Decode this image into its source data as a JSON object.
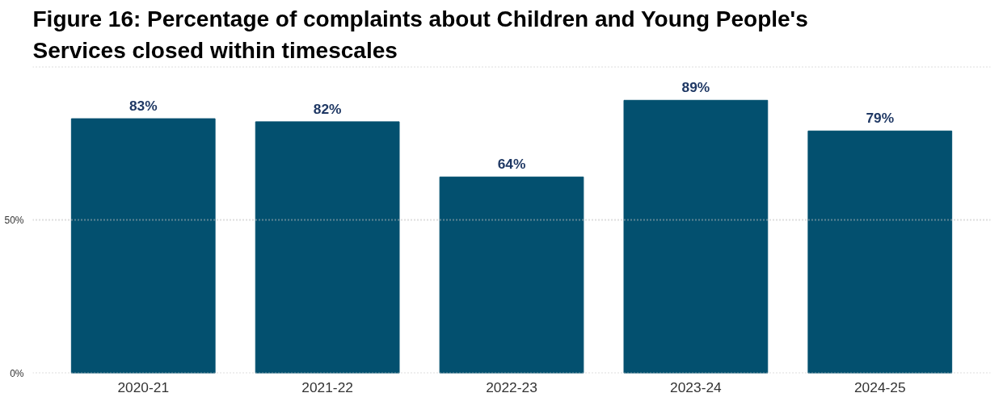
{
  "chart_data": {
    "type": "bar",
    "title": "Figure 16: Percentage of complaints about Children and Young People's\nServices closed within timescales",
    "categories": [
      "2020-21",
      "2021-22",
      "2022-23",
      "2023-24",
      "2024-25"
    ],
    "values": [
      83,
      82,
      64,
      89,
      79
    ],
    "color": "#03506f",
    "value_labels": [
      "83%",
      "82%",
      "64%",
      "89%",
      "79%"
    ],
    "ylim": [
      0,
      100
    ],
    "yticks": [
      {
        "value": 0,
        "label": "0%"
      },
      {
        "value": 50,
        "label": "50%"
      },
      {
        "value": 100,
        "label": null
      }
    ],
    "grid": "y",
    "legend": false
  }
}
